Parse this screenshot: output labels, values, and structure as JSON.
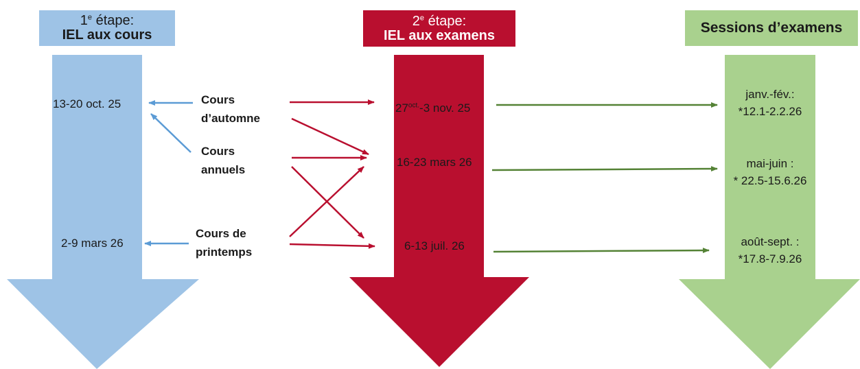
{
  "colors": {
    "blue": "#9ec3e6",
    "blue_line": "#5b9bd5",
    "red": "#b90f2f",
    "green": "#a9d18e",
    "green_line": "#548235"
  },
  "columns": [
    {
      "step_prefix": "1",
      "step_sup": "e",
      "step_suffix": " étape:",
      "title": "IEL aux cours"
    },
    {
      "step_prefix": "2",
      "step_sup": "e",
      "step_suffix": " étape:",
      "title": "IEL aux examens"
    },
    {
      "title": "Sessions d’examens"
    }
  ],
  "step1_dates": [
    "13-20 oct. 25",
    "2-9 mars 26"
  ],
  "courses": [
    {
      "line1": "Cours",
      "line2": "d’automne"
    },
    {
      "line1": "Cours",
      "line2": "annuels"
    },
    {
      "line1": "Cours de",
      "line2": "printemps"
    }
  ],
  "step2_dates": {
    "first_a": "27",
    "first_sup": "oct.",
    "first_b": "-3 nov. 25",
    "second": "16-23 mars 26",
    "third": "6-13 juil. 26"
  },
  "sessions": [
    {
      "period": "janv.-fév.:",
      "dates": "*12.1-2.2.26"
    },
    {
      "period": "mai-juin :",
      "dates": "* 22.5-15.6.26"
    },
    {
      "period": "août-sept. :",
      "dates": "*17.8-7.9.26"
    }
  ]
}
